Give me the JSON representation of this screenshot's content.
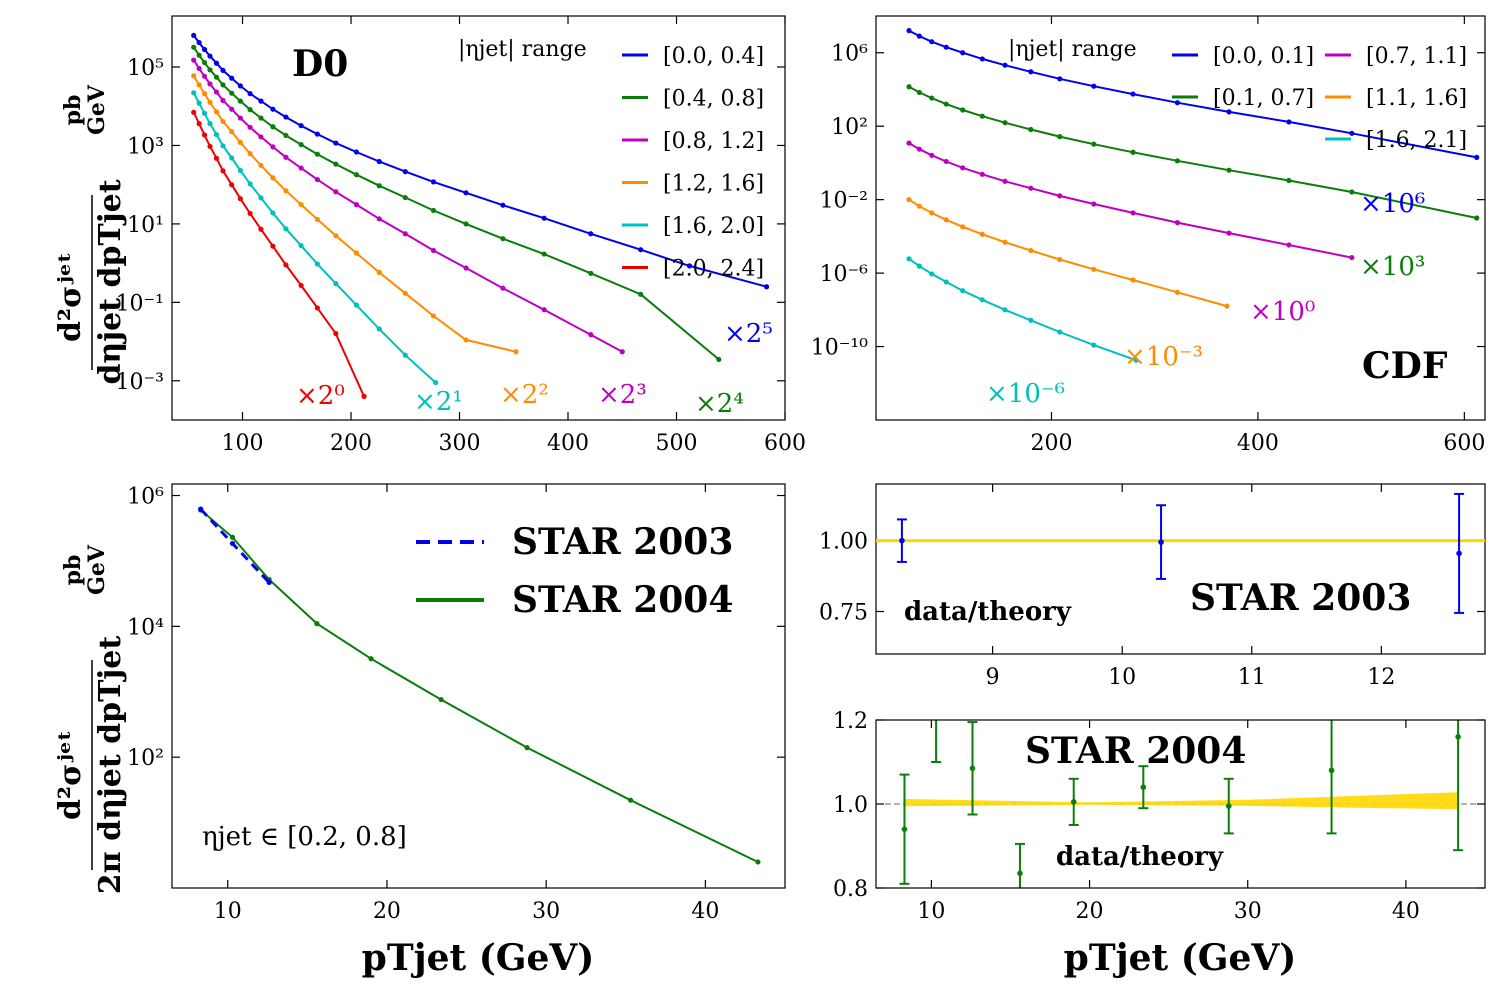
{
  "figure": {
    "y_axis_label_top": {
      "numerator": "d²σʲᵉᵗ",
      "denominator": "dηjet dpTjet",
      "unit_num": "pb",
      "unit_den": "GeV"
    },
    "y_axis_label_bottom": {
      "numerator": "d²σʲᵉᵗ",
      "denominator": "2π dηjet dpTjet",
      "unit_num": "pb",
      "unit_den": "GeV"
    },
    "x_axis_label": "pTjet (GeV)"
  },
  "colors": {
    "blue": "#0000ee",
    "green": "#0a7d0a",
    "magenta": "#c000c0",
    "orange": "#ff8c00",
    "cyan": "#00bfbf",
    "red": "#ee0000",
    "band": "#ffd700"
  },
  "chart_data": [
    {
      "id": "d0",
      "type": "line",
      "experiment_label": "D0",
      "legend_title": "|ηjet| range",
      "scale": "log",
      "xlim": [
        35,
        600
      ],
      "ylim": [
        0.0001,
        2000000.0
      ],
      "xticks": [
        "100",
        "200",
        "300",
        "400",
        "500",
        "600"
      ],
      "yticks": [
        "10⁵",
        "10³",
        "10¹",
        "10⁻¹",
        "10⁻³"
      ],
      "series": [
        {
          "name": "[0.0, 0.4]",
          "color": "blue",
          "factor_label": "×2⁵",
          "x": [
            55,
            60,
            65,
            70,
            76,
            82,
            90,
            98,
            107,
            117,
            128,
            140,
            154,
            169,
            186,
            205,
            226,
            250,
            276,
            306,
            340,
            378,
            421,
            467,
            512,
            583
          ],
          "y": [
            640000,
            420000,
            280000,
            190000,
            125000,
            82000,
            52000,
            33000,
            21000,
            13500,
            8400,
            5300,
            3200,
            1950,
            1150,
            680,
            390,
            215,
            118,
            62,
            30,
            14,
            5.6,
            2.2,
            0.85,
            0.25
          ]
        },
        {
          "name": "[0.4, 0.8]",
          "color": "green",
          "factor_label": "×2⁴",
          "x": [
            55,
            60,
            65,
            70,
            76,
            82,
            90,
            98,
            107,
            117,
            128,
            140,
            154,
            169,
            186,
            205,
            226,
            250,
            276,
            306,
            340,
            378,
            421,
            467,
            539
          ],
          "y": [
            320000,
            200000,
            130000,
            85000,
            55000,
            35000,
            21500,
            13500,
            8200,
            5000,
            3000,
            1800,
            1050,
            600,
            335,
            180,
            94,
            47,
            22,
            10,
            4.2,
            1.7,
            0.55,
            0.16,
            0.0035
          ]
        },
        {
          "name": "[0.8, 1.2]",
          "color": "magenta",
          "factor_label": "×2³",
          "x": [
            55,
            60,
            65,
            70,
            76,
            82,
            90,
            98,
            107,
            117,
            128,
            140,
            154,
            169,
            186,
            205,
            226,
            250,
            276,
            306,
            340,
            378,
            421,
            450
          ],
          "y": [
            150000,
            92000,
            58000,
            37000,
            23000,
            14000,
            8400,
            5000,
            2900,
            1650,
            920,
            500,
            265,
            135,
            66,
            31,
            13.5,
            5.6,
            2.1,
            0.75,
            0.23,
            0.065,
            0.015,
            0.0055
          ]
        },
        {
          "name": "[1.2, 1.6]",
          "color": "orange",
          "factor_label": "×2²",
          "x": [
            55,
            60,
            65,
            70,
            76,
            82,
            90,
            98,
            107,
            117,
            128,
            140,
            154,
            169,
            186,
            205,
            226,
            250,
            276,
            306,
            352
          ],
          "y": [
            60000,
            35000,
            21000,
            12500,
            7200,
            4100,
            2250,
            1200,
            620,
            310,
            150,
            70,
            31,
            13,
            5,
            1.8,
            0.58,
            0.17,
            0.045,
            0.011,
            0.0055
          ]
        },
        {
          "name": "[1.6, 2.0]",
          "color": "cyan",
          "factor_label": "×2¹",
          "x": [
            55,
            60,
            65,
            70,
            76,
            82,
            90,
            98,
            107,
            117,
            128,
            140,
            154,
            169,
            186,
            205,
            226,
            250,
            278
          ],
          "y": [
            22000,
            12000,
            6600,
            3600,
            1900,
            980,
            480,
            230,
            105,
            46,
            19,
            7.5,
            2.8,
            0.95,
            0.3,
            0.085,
            0.021,
            0.0045,
            0.0009
          ]
        },
        {
          "name": "[2.0, 2.4]",
          "color": "red",
          "factor_label": "×2⁰",
          "x": [
            55,
            60,
            65,
            70,
            76,
            82,
            90,
            98,
            107,
            117,
            128,
            140,
            154,
            169,
            186,
            212
          ],
          "y": [
            7000,
            3600,
            1850,
            950,
            470,
            225,
            100,
            44,
            18.5,
            7.3,
            2.7,
            0.9,
            0.27,
            0.072,
            0.016,
            0.0004
          ]
        }
      ]
    },
    {
      "id": "cdf",
      "type": "line",
      "experiment_label": "CDF",
      "legend_title": "|ηjet| range",
      "scale": "log",
      "xlim": [
        30,
        620
      ],
      "ylim": [
        1e-14,
        100000000.0
      ],
      "xticks": [
        "200",
        "400",
        "600"
      ],
      "yticks": [
        "10⁶",
        "10²",
        "10⁻²",
        "10⁻⁶",
        "10⁻¹⁰"
      ],
      "series": [
        {
          "name": "[0.0, 0.1]",
          "color": "blue",
          "factor_label": "×10⁶",
          "x": [
            62,
            72,
            84,
            98,
            114,
            133,
            155,
            180,
            208,
            241,
            279,
            322,
            372,
            430,
            491,
            612
          ],
          "y": [
            16000000.0,
            8000000.0,
            4000000.0,
            2000000.0,
            1000000.0,
            460000.0,
            210000.0,
            92000.0,
            38000.0,
            15000.0,
            5600.0,
            1900.0,
            600,
            170,
            41,
            2
          ]
        },
        {
          "name": "[0.1, 0.7]",
          "color": "green",
          "factor_label": "×10³",
          "x": [
            62,
            72,
            84,
            98,
            114,
            133,
            155,
            180,
            208,
            241,
            279,
            322,
            372,
            430,
            491,
            612
          ],
          "y": [
            14000.0,
            6900.0,
            3400.0,
            1600.0,
            760,
            350,
            155,
            66,
            27,
            10.5,
            3.8,
            1.3,
            0.4,
            0.11,
            0.026,
            0.001
          ]
        },
        {
          "name": "[0.7, 1.1]",
          "color": "magenta",
          "factor_label": "×10⁰",
          "x": [
            62,
            72,
            84,
            98,
            114,
            133,
            155,
            180,
            208,
            241,
            279,
            322,
            372,
            430,
            491
          ],
          "y": [
            12,
            5.6,
            2.6,
            1.2,
            0.54,
            0.24,
            0.1,
            0.042,
            0.016,
            0.0058,
            0.0019,
            0.00056,
            0.00015,
            3.4e-05,
            7e-06
          ]
        },
        {
          "name": "[1.1, 1.6]",
          "color": "orange",
          "factor_label": "×10⁻³",
          "x": [
            62,
            72,
            84,
            98,
            114,
            133,
            155,
            180,
            208,
            241,
            279,
            322,
            370
          ],
          "y": [
            0.01,
            0.0044,
            0.0019,
            0.0008,
            0.00033,
            0.00013,
            4.8e-05,
            1.7e-05,
            5.5e-06,
            1.6e-06,
            4.2e-07,
            9e-08,
            1.6e-08
          ]
        },
        {
          "name": "[1.6, 2.1]",
          "color": "cyan",
          "factor_label": "×10⁻⁶",
          "x": [
            62,
            72,
            84,
            98,
            114,
            133,
            155,
            180,
            208,
            241,
            282
          ],
          "y": [
            6e-06,
            2.4e-06,
            9e-07,
            3.3e-07,
            1.1e-07,
            3.5e-08,
            1e-08,
            2.7e-09,
            6.2e-10,
            1.2e-10,
            1.8e-11
          ]
        }
      ]
    },
    {
      "id": "star",
      "type": "line",
      "scale": "log",
      "xlim": [
        6.5,
        45
      ],
      "ylim": [
        1,
        1500000.0
      ],
      "xticks": [
        "10",
        "20",
        "30",
        "40"
      ],
      "yticks": [
        "10⁶",
        "10⁴",
        "10²"
      ],
      "annotation": "ηjet ∈ [0.2, 0.8]",
      "series": [
        {
          "name": "STAR 2003",
          "color": "blue",
          "dash": true,
          "x": [
            8.3,
            10.3,
            12.6
          ],
          "y": [
            620000,
            185000,
            47000
          ]
        },
        {
          "name": "STAR 2004",
          "color": "green",
          "dash": false,
          "x": [
            8.3,
            10.3,
            12.6,
            15.6,
            19.0,
            23.4,
            28.8,
            35.3,
            43.3
          ],
          "y": [
            600000,
            230000,
            52000,
            11000,
            3200,
            760,
            140,
            22,
            2.5
          ]
        }
      ]
    },
    {
      "id": "ratio2003",
      "type": "scatter",
      "label": "STAR 2003",
      "sublabel": "data/theory",
      "xlim": [
        8.1,
        12.8
      ],
      "ylim": [
        0.6,
        1.2
      ],
      "xticks": [
        "9",
        "10",
        "11",
        "12"
      ],
      "yticks": [
        "1.00",
        "0.75"
      ],
      "series": [
        {
          "name": "STAR 2003",
          "color": "blue",
          "x": [
            8.3,
            10.3,
            12.6
          ],
          "y": [
            1.0,
            0.995,
            0.955
          ],
          "err": [
            0.075,
            0.13,
            0.21
          ]
        }
      ]
    },
    {
      "id": "ratio2004",
      "type": "scatter",
      "label": "STAR 2004",
      "sublabel": "data/theory",
      "xlim": [
        6.5,
        45
      ],
      "ylim": [
        0.8,
        1.2
      ],
      "xticks": [
        "10",
        "20",
        "30",
        "40"
      ],
      "yticks": [
        "1.2",
        "1.0",
        "0.8"
      ],
      "series": [
        {
          "name": "STAR 2004",
          "color": "green",
          "x": [
            8.3,
            10.3,
            12.6,
            15.6,
            19.0,
            23.4,
            28.8,
            35.3,
            43.3
          ],
          "y": [
            0.94,
            1.22,
            1.085,
            0.835,
            1.005,
            1.04,
            0.995,
            1.08,
            1.16
          ],
          "err": [
            0.13,
            0.12,
            0.11,
            0.07,
            0.055,
            0.05,
            0.065,
            0.15,
            0.27
          ]
        }
      ]
    }
  ]
}
